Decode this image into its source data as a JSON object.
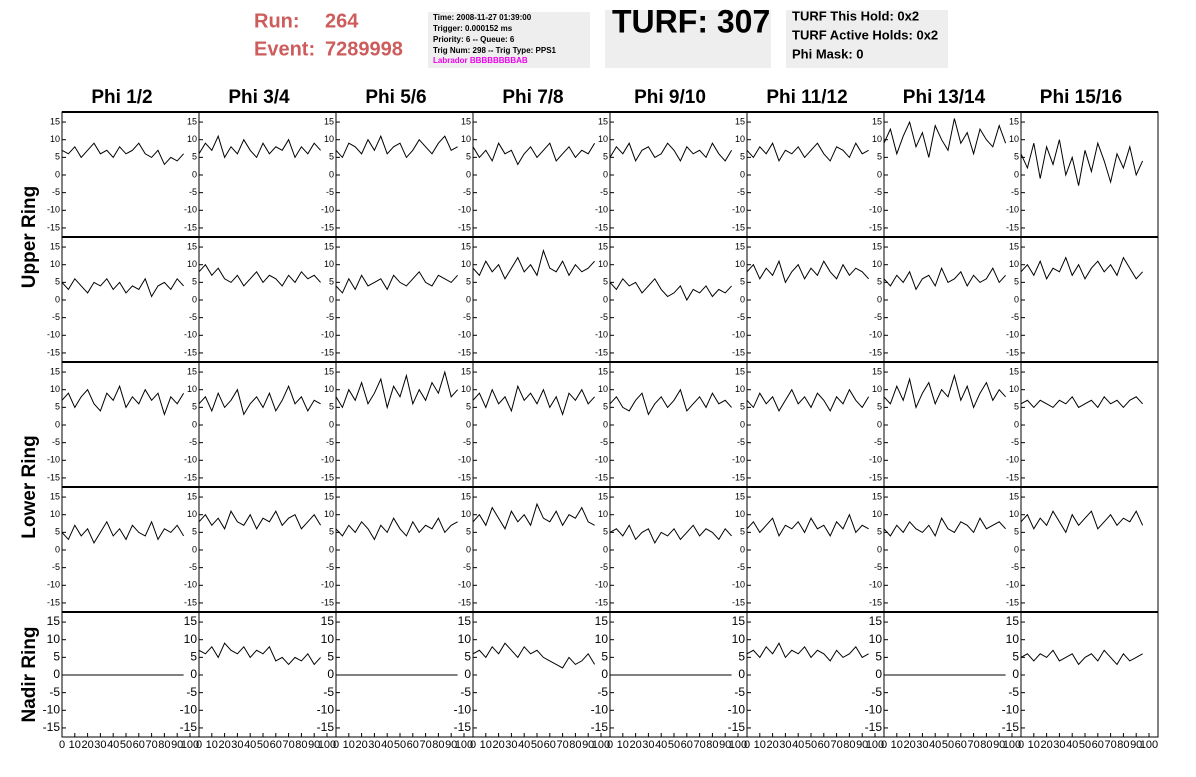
{
  "header": {
    "run_label": "Run:",
    "run": "264",
    "event_label": "Event:",
    "event": "7289998",
    "info": [
      "Time: 2008-11-27 01:39:00",
      "Trigger: 0.000152 ms",
      "Priority: 6 -- Queue: 6",
      "Trig Num: 298 -- Trig Type: PPS1"
    ],
    "labrador": "Labrador BBBBBBBBAB",
    "turf": "TURF: 307",
    "turf_info": [
      "TURF This Hold: 0x2",
      "TURF Active Holds: 0x2",
      "Phi Mask: 0"
    ]
  },
  "chart_data": {
    "type": "line",
    "color": "#000000",
    "columns": [
      "Phi 1/2",
      "Phi 3/4",
      "Phi 5/6",
      "Phi 7/8",
      "Phi 9/10",
      "Phi 11/12",
      "Phi 13/14",
      "Phi 15/16"
    ],
    "ring_labels": [
      "Upper Ring",
      "Lower Ring",
      "Nadir Ring"
    ],
    "xlim": [
      0,
      100
    ],
    "xticks": [
      0,
      10,
      20,
      30,
      40,
      50,
      60,
      70,
      80,
      90,
      100
    ],
    "ylim": [
      -17,
      17
    ],
    "yticks": [
      -15,
      -10,
      -5,
      0,
      5,
      10,
      15
    ],
    "x": [
      0,
      5,
      10,
      15,
      20,
      25,
      30,
      35,
      40,
      45,
      50,
      55,
      60,
      65,
      70,
      75,
      80,
      85,
      90,
      95
    ],
    "panels": [
      [
        [
          7,
          6,
          8,
          5,
          7,
          9,
          6,
          7,
          5,
          8,
          6,
          7,
          9,
          6,
          5,
          7,
          3,
          5,
          4,
          6
        ],
        [
          6,
          9,
          7,
          11,
          5,
          8,
          6,
          10,
          7,
          5,
          9,
          6,
          8,
          7,
          10,
          5,
          8,
          6,
          9,
          7
        ],
        [
          7,
          5,
          9,
          8,
          6,
          10,
          7,
          11,
          6,
          8,
          9,
          5,
          7,
          10,
          8,
          6,
          9,
          11,
          7,
          8
        ],
        [
          8,
          5,
          7,
          4,
          9,
          6,
          7,
          3,
          6,
          8,
          5,
          7,
          9,
          4,
          6,
          8,
          5,
          7,
          6,
          9
        ],
        [
          5,
          8,
          6,
          9,
          4,
          7,
          8,
          5,
          6,
          9,
          7,
          4,
          8,
          6,
          7,
          5,
          9,
          6,
          4,
          7
        ],
        [
          7,
          5,
          8,
          6,
          9,
          4,
          7,
          6,
          8,
          5,
          7,
          9,
          6,
          4,
          8,
          7,
          5,
          9,
          6,
          7
        ],
        [
          9,
          13,
          6,
          11,
          15,
          8,
          12,
          5,
          14,
          10,
          7,
          16,
          9,
          12,
          6,
          13,
          10,
          8,
          14,
          9
        ],
        [
          6,
          2,
          9,
          -1,
          8,
          3,
          10,
          0,
          5,
          -3,
          7,
          1,
          9,
          4,
          -2,
          6,
          2,
          8,
          0,
          4
        ]
      ],
      [
        [
          5,
          3,
          6,
          4,
          2,
          5,
          4,
          6,
          3,
          5,
          2,
          4,
          3,
          6,
          1,
          4,
          5,
          3,
          6,
          4
        ],
        [
          8,
          10,
          7,
          9,
          6,
          5,
          7,
          4,
          6,
          8,
          5,
          7,
          6,
          4,
          7,
          5,
          8,
          6,
          7,
          5
        ],
        [
          4,
          2,
          6,
          3,
          7,
          4,
          5,
          6,
          3,
          7,
          5,
          4,
          6,
          8,
          5,
          4,
          7,
          6,
          5,
          7
        ],
        [
          9,
          7,
          11,
          8,
          10,
          6,
          9,
          12,
          8,
          10,
          7,
          14,
          9,
          8,
          11,
          7,
          10,
          8,
          9,
          11
        ],
        [
          5,
          3,
          6,
          4,
          5,
          2,
          4,
          6,
          3,
          1,
          2,
          4,
          0,
          3,
          2,
          4,
          1,
          3,
          2,
          4
        ],
        [
          8,
          10,
          6,
          9,
          7,
          11,
          5,
          8,
          10,
          6,
          9,
          7,
          11,
          8,
          6,
          10,
          7,
          9,
          8,
          6
        ],
        [
          6,
          4,
          7,
          5,
          8,
          3,
          6,
          7,
          4,
          9,
          5,
          6,
          8,
          4,
          7,
          5,
          6,
          9,
          5,
          7
        ],
        [
          8,
          10,
          7,
          11,
          6,
          9,
          8,
          12,
          7,
          10,
          6,
          9,
          11,
          8,
          10,
          7,
          12,
          9,
          6,
          8
        ]
      ],
      [
        [
          7,
          9,
          5,
          8,
          10,
          6,
          4,
          9,
          7,
          11,
          5,
          8,
          6,
          10,
          7,
          9,
          3,
          8,
          6,
          9
        ],
        [
          6,
          8,
          4,
          9,
          5,
          7,
          10,
          3,
          6,
          8,
          5,
          9,
          4,
          7,
          11,
          6,
          8,
          4,
          7,
          6
        ],
        [
          8,
          5,
          10,
          7,
          12,
          6,
          9,
          13,
          5,
          11,
          8,
          14,
          6,
          10,
          7,
          12,
          9,
          15,
          8,
          10
        ],
        [
          7,
          9,
          5,
          10,
          6,
          8,
          4,
          11,
          7,
          9,
          6,
          10,
          5,
          8,
          3,
          9,
          7,
          10,
          6,
          8
        ],
        [
          6,
          8,
          5,
          4,
          7,
          9,
          3,
          6,
          8,
          5,
          7,
          10,
          4,
          6,
          8,
          5,
          9,
          6,
          7,
          5
        ],
        [
          7,
          5,
          9,
          6,
          8,
          4,
          7,
          10,
          6,
          8,
          5,
          9,
          7,
          4,
          8,
          6,
          10,
          7,
          5,
          8
        ],
        [
          8,
          6,
          11,
          7,
          13,
          5,
          9,
          12,
          6,
          10,
          8,
          14,
          7,
          11,
          5,
          9,
          12,
          7,
          10,
          8
        ],
        [
          6,
          7,
          5,
          7,
          6,
          5,
          7,
          6,
          8,
          5,
          6,
          7,
          5,
          8,
          6,
          7,
          5,
          7,
          8,
          6
        ]
      ],
      [
        [
          5,
          3,
          7,
          4,
          6,
          2,
          5,
          8,
          4,
          6,
          3,
          7,
          5,
          4,
          8,
          3,
          6,
          5,
          7,
          4
        ],
        [
          8,
          10,
          7,
          9,
          6,
          11,
          8,
          7,
          10,
          6,
          9,
          8,
          11,
          7,
          9,
          10,
          6,
          8,
          10,
          7
        ],
        [
          6,
          4,
          7,
          5,
          8,
          6,
          3,
          7,
          5,
          9,
          6,
          4,
          8,
          5,
          7,
          6,
          9,
          5,
          7,
          8
        ],
        [
          8,
          10,
          7,
          12,
          9,
          6,
          11,
          8,
          10,
          7,
          13,
          9,
          8,
          11,
          7,
          10,
          9,
          12,
          8,
          7
        ],
        [
          5,
          6,
          4,
          7,
          3,
          5,
          6,
          2,
          5,
          4,
          6,
          3,
          5,
          7,
          4,
          6,
          5,
          3,
          6,
          4
        ],
        [
          6,
          8,
          5,
          7,
          9,
          4,
          7,
          6,
          8,
          5,
          9,
          6,
          7,
          4,
          8,
          6,
          10,
          5,
          7,
          6
        ],
        [
          6,
          4,
          7,
          5,
          8,
          6,
          5,
          7,
          4,
          9,
          6,
          5,
          8,
          7,
          5,
          9,
          6,
          7,
          8,
          6
        ],
        [
          8,
          10,
          6,
          9,
          7,
          11,
          8,
          5,
          10,
          7,
          9,
          11,
          6,
          8,
          10,
          7,
          9,
          8,
          11,
          7
        ]
      ],
      [
        [
          0,
          0,
          0,
          0,
          0,
          0,
          0,
          0,
          0,
          0,
          0,
          0,
          0,
          0,
          0,
          0,
          0,
          0,
          0,
          0
        ],
        [
          7,
          6,
          8,
          5,
          9,
          7,
          6,
          8,
          5,
          7,
          6,
          8,
          4,
          5,
          3,
          5,
          4,
          6,
          3,
          5
        ],
        [
          0,
          0,
          0,
          0,
          0,
          0,
          0,
          0,
          0,
          0,
          0,
          0,
          0,
          0,
          0,
          0,
          0,
          0,
          0,
          0
        ],
        [
          6,
          7,
          5,
          8,
          6,
          9,
          7,
          5,
          8,
          6,
          7,
          5,
          4,
          3,
          2,
          5,
          3,
          4,
          6,
          3
        ],
        [
          0,
          0,
          0,
          0,
          0,
          0,
          0,
          0,
          0,
          0,
          0,
          0,
          0,
          0,
          0,
          0,
          0,
          0,
          0,
          0
        ],
        [
          6,
          7,
          5,
          8,
          6,
          9,
          5,
          7,
          6,
          8,
          5,
          7,
          6,
          4,
          7,
          5,
          6,
          8,
          5,
          6
        ],
        [
          0,
          0,
          0,
          0,
          0,
          0,
          0,
          0,
          0,
          0,
          0,
          0,
          0,
          0,
          0,
          0,
          0,
          0,
          0,
          0
        ],
        [
          5,
          6,
          4,
          6,
          5,
          7,
          4,
          5,
          6,
          3,
          5,
          6,
          4,
          7,
          5,
          3,
          6,
          4,
          5,
          6
        ]
      ]
    ]
  }
}
